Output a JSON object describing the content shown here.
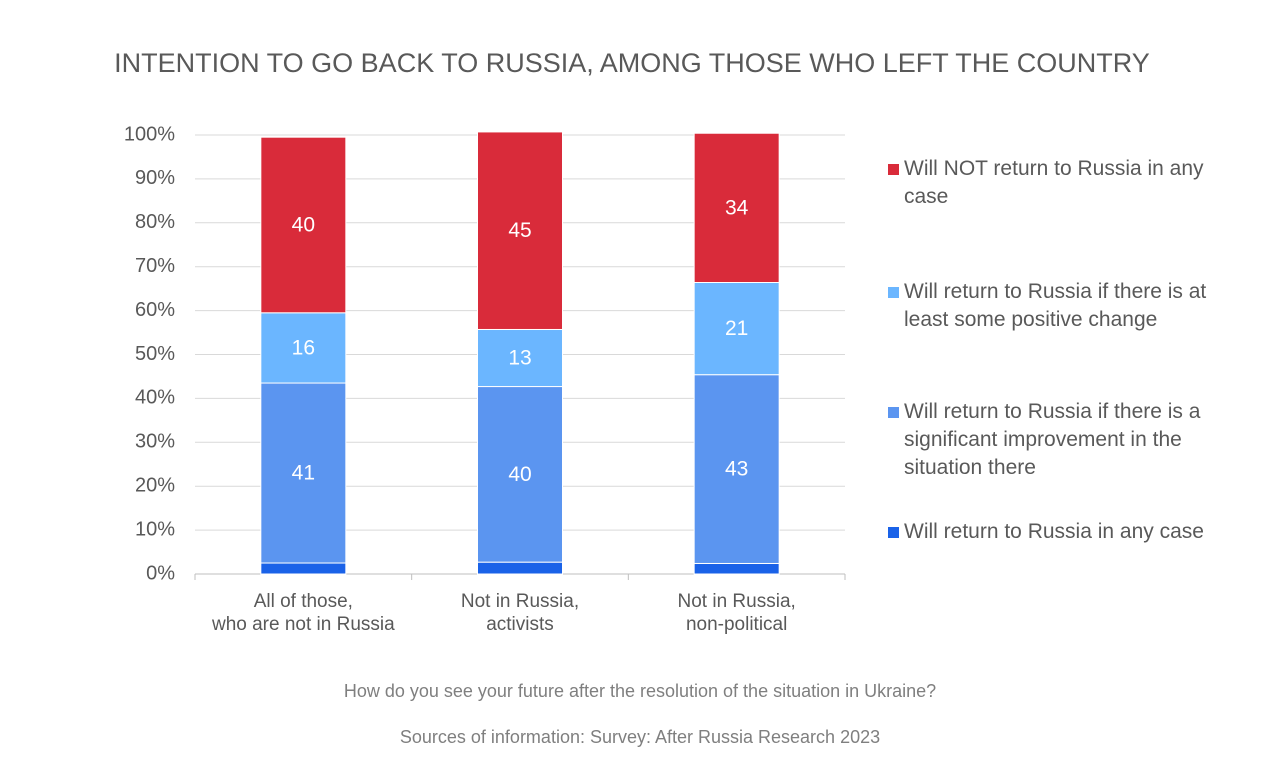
{
  "chart_data": {
    "type": "stacked_bar",
    "title": "INTENTION TO GO BACK TO RUSSIA, AMONG THOSE WHO LEFT THE COUNTRY",
    "footnotes": [
      "How do you see your future after the resolution of the situation in Ukraine?",
      "Sources of information: Survey: After Russia Research 2023"
    ],
    "categories": [
      "All of those,\nwho are not in Russia",
      "Not in Russia,\nactivists",
      "Not in Russia,\nnon-political"
    ],
    "series": [
      {
        "name": "Will return to Russia in any case",
        "color": "#1a62e8",
        "values": [
          2.5,
          2.7,
          2.4
        ],
        "show_labels": false
      },
      {
        "name": "Will return to Russia if there is a significant improvement in the situation there",
        "color": "#5b95f0",
        "values": [
          41,
          40,
          43
        ],
        "show_labels": true
      },
      {
        "name": "Will return to Russia if there is at least some positive change",
        "color": "#6bb6ff",
        "values": [
          16,
          13,
          21
        ],
        "show_labels": true
      },
      {
        "name": "Will NOT return to Russia in any case",
        "color": "#d92b3a",
        "values": [
          40,
          45,
          34
        ],
        "show_labels": true
      }
    ],
    "ylim": [
      0,
      100
    ],
    "yticks": [
      {
        "value": 0,
        "label": "0%"
      },
      {
        "value": 10,
        "label": "10%"
      },
      {
        "value": 20,
        "label": "20%"
      },
      {
        "value": 30,
        "label": "30%"
      },
      {
        "value": 40,
        "label": "40%"
      },
      {
        "value": 50,
        "label": "50%"
      },
      {
        "value": 60,
        "label": "60%"
      },
      {
        "value": 70,
        "label": "70%"
      },
      {
        "value": 80,
        "label": "80%"
      },
      {
        "value": 90,
        "label": "90%"
      },
      {
        "value": 100,
        "label": "100%"
      }
    ],
    "grid": true,
    "legend": "right"
  }
}
